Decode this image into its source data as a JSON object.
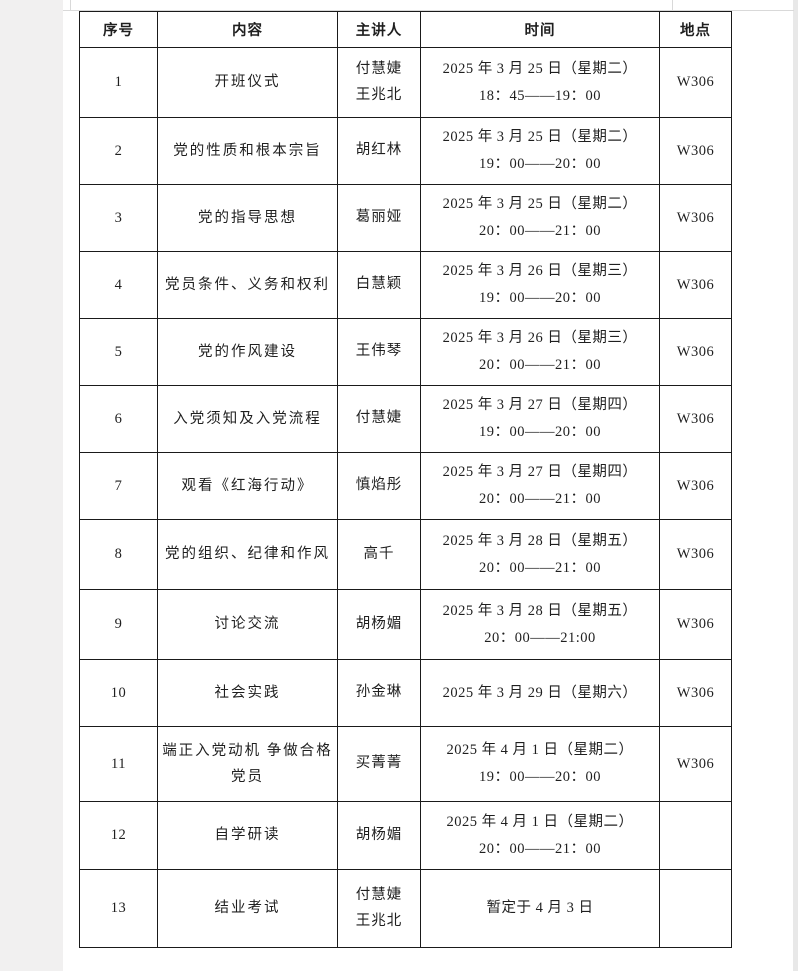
{
  "page": {
    "background": "#ffffff",
    "gutter_color": "#f1f0f0",
    "border_color": "#1a1a1a",
    "text_color": "#1f1f1f"
  },
  "table": {
    "headers": [
      "序号",
      "内容",
      "主讲人",
      "时间",
      "地点"
    ],
    "rows": [
      {
        "no": "1",
        "content": "开班仪式",
        "speaker": "付慧婕\n王兆北",
        "time": "2025 年 3 月 25 日（星期二）\n18：45——19：00",
        "location": "W306"
      },
      {
        "no": "2",
        "content": "党的性质和根本宗旨",
        "speaker": "胡红林",
        "time": "2025 年 3 月 25 日（星期二）\n19：00——20：00",
        "location": "W306"
      },
      {
        "no": "3",
        "content": "党的指导思想",
        "speaker": "葛丽娅",
        "time": "2025 年 3 月 25 日（星期二）\n20：00——21：00",
        "location": "W306"
      },
      {
        "no": "4",
        "content": "党员条件、义务和权利",
        "speaker": "白慧颖",
        "time": "2025 年 3 月 26 日（星期三）\n19：00——20：00",
        "location": "W306"
      },
      {
        "no": "5",
        "content": "党的作风建设",
        "speaker": "王伟琴",
        "time": "2025 年 3 月 26 日（星期三）\n20：00——21：00",
        "location": "W306"
      },
      {
        "no": "6",
        "content": "入党须知及入党流程",
        "speaker": "付慧婕",
        "time": "2025 年 3 月 27 日（星期四）\n19：00——20：00",
        "location": "W306"
      },
      {
        "no": "7",
        "content": "观看《红海行动》",
        "speaker": "慎焰彤",
        "time": "2025 年 3 月 27 日（星期四）\n20：00——21：00",
        "location": "W306"
      },
      {
        "no": "8",
        "content": "党的组织、纪律和作风",
        "speaker": "高千",
        "time": "2025 年 3 月 28 日（星期五）\n20：00——21：00",
        "location": "W306"
      },
      {
        "no": "9",
        "content": "讨论交流",
        "speaker": "胡杨媚",
        "time": "2025 年 3 月 28 日（星期五）\n20：00——21:00",
        "location": "W306"
      },
      {
        "no": "10",
        "content": "社会实践",
        "speaker": "孙金琳",
        "time": "2025 年 3 月 29 日（星期六）",
        "location": "W306"
      },
      {
        "no": "11",
        "content": "端正入党动机 争做合格党员",
        "speaker": "买菁菁",
        "time": "2025 年 4 月 1 日（星期二）\n19：00——20：00",
        "location": "W306"
      },
      {
        "no": "12",
        "content": "自学研读",
        "speaker": "胡杨媚",
        "time": "2025 年 4 月 1 日（星期二）\n20：00——21：00",
        "location": ""
      },
      {
        "no": "13",
        "content": "结业考试",
        "speaker": "付慧婕\n王兆北",
        "time": "暂定于 4 月 3 日",
        "location": ""
      }
    ]
  }
}
